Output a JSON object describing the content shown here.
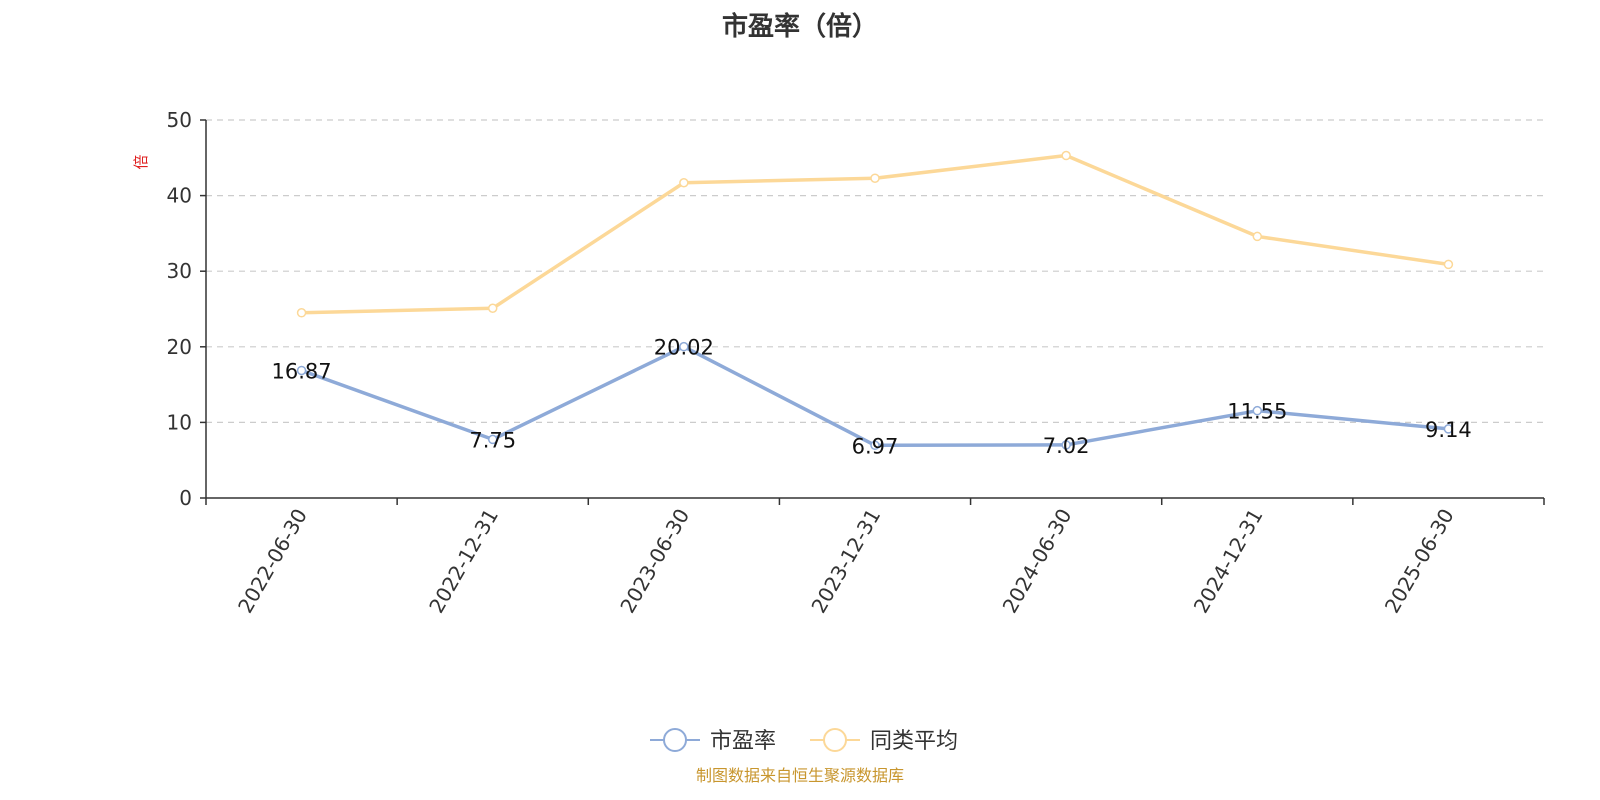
{
  "chart_data": {
    "type": "line",
    "title": "市盈率（倍）",
    "ylabel": "倍",
    "ylim": [
      0,
      50
    ],
    "yticks": [
      0,
      10,
      20,
      30,
      40,
      50
    ],
    "grid": true,
    "legend": "bottom-center",
    "categories": [
      "2022-06-30",
      "2022-12-31",
      "2023-06-30",
      "2023-12-31",
      "2024-06-30",
      "2024-12-31",
      "2025-06-30"
    ],
    "series": [
      {
        "name": "市盈率",
        "color": "#8eaad8",
        "values": [
          16.87,
          7.75,
          20.02,
          6.97,
          7.02,
          11.55,
          9.14
        ],
        "show_labels": true
      },
      {
        "name": "同类平均",
        "color": "#fcd898",
        "values": [
          24.5,
          25.1,
          41.7,
          42.3,
          45.3,
          34.6,
          30.9
        ],
        "show_labels": false
      }
    ]
  },
  "source_note": "制图数据来自恒生聚源数据库"
}
